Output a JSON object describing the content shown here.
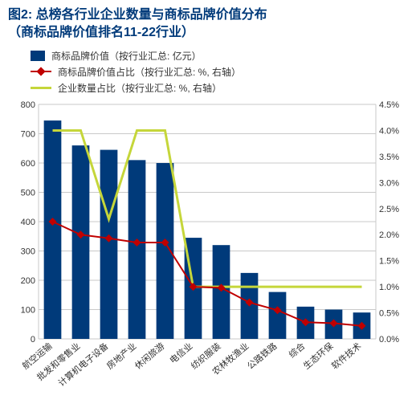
{
  "title_l1": "图2: 总榜各行业企业数量与商标品牌价值分布",
  "title_l2": "（商标品牌价值排名11-22行业）",
  "legend": {
    "bar": "商标品牌价值（按行业汇总: 亿元）",
    "red": "商标品牌价值占比（按行业汇总: %, 右轴）",
    "yel": "企业数量占比（按行业汇总: %, 右轴）"
  },
  "chart": {
    "type": "bar+line",
    "categories": [
      "航空运输",
      "批发和零售业",
      "计算机电子设备",
      "房地产业",
      "休闲旅游",
      "电信业",
      "纺织服装",
      "农林牧渔业",
      "公路铁路",
      "综合",
      "生态环保",
      "软件技术"
    ],
    "bar_values": [
      745,
      660,
      645,
      610,
      600,
      345,
      320,
      225,
      160,
      110,
      100,
      90
    ],
    "red_values": [
      2.25,
      2.0,
      1.93,
      1.85,
      1.85,
      1.0,
      0.98,
      0.7,
      0.55,
      0.32,
      0.3,
      0.25
    ],
    "yel_values": [
      4.0,
      4.0,
      2.3,
      4.0,
      4.0,
      1.0,
      1.0,
      1.0,
      1.0,
      1.0,
      1.0,
      1.0
    ],
    "yleft": {
      "min": 0,
      "max": 800,
      "step": 100
    },
    "yright": {
      "min": 0,
      "max": 4.5,
      "step": 0.5,
      "suffix": "%"
    },
    "colors": {
      "bar": "#003a7a",
      "red": "#c00000",
      "yel": "#c5d63a",
      "grid": "#c9c9c9",
      "bg": "#ffffff",
      "title": "#003a7a"
    },
    "bar_width": 0.62,
    "label_fontsize": 11,
    "title_fontsize": 16
  }
}
